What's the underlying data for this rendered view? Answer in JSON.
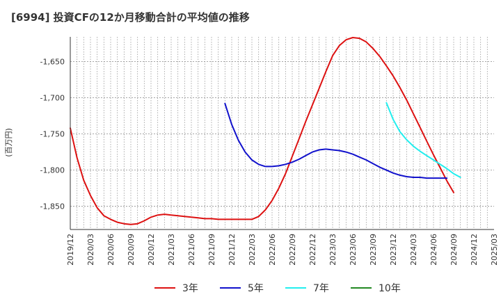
{
  "chart_data": {
    "type": "line",
    "title": "[6994]  投資CFの12か月移動合計の平均値の推移",
    "ylabel": "(百万円)",
    "xlabel": "",
    "ylim": [
      -1882,
      -1616
    ],
    "yticks": [
      -1650,
      -1700,
      -1750,
      -1800,
      -1850
    ],
    "ytick_labels": [
      "-1,650",
      "-1,700",
      "-1,750",
      "-1,800",
      "-1,850"
    ],
    "x_tick_labels": [
      "2019/12",
      "2020/03",
      "2020/06",
      "2020/09",
      "2020/12",
      "2021/03",
      "2021/06",
      "2021/09",
      "2021/12",
      "2022/03",
      "2022/06",
      "2022/09",
      "2022/12",
      "2023/03",
      "2023/06",
      "2023/09",
      "2023/12",
      "2024/03",
      "2024/06",
      "2024/09",
      "2024/12",
      "2025/03"
    ],
    "x_start": "2019/12",
    "x_end": "2025/03",
    "grid": true,
    "legend_position": "bottom",
    "series": [
      {
        "name": "3年",
        "color": "#dd1111",
        "start": "2019/12",
        "values": [
          -1742,
          -1783,
          -1814,
          -1835,
          -1852,
          -1863,
          -1868,
          -1872,
          -1874,
          -1875,
          -1874,
          -1870,
          -1865,
          -1862,
          -1861,
          -1862,
          -1863,
          -1864,
          -1865,
          -1866,
          -1867,
          -1867,
          -1868,
          -1868,
          -1868,
          -1868,
          -1868,
          -1868,
          -1864,
          -1855,
          -1842,
          -1825,
          -1805,
          -1781,
          -1757,
          -1733,
          -1710,
          -1687,
          -1664,
          -1642,
          -1628,
          -1620,
          -1617,
          -1618,
          -1623,
          -1632,
          -1643,
          -1656,
          -1670,
          -1686,
          -1703,
          -1722,
          -1741,
          -1760,
          -1779,
          -1797,
          -1815,
          -1831
        ]
      },
      {
        "name": "5年",
        "color": "#1111cc",
        "start": "2021/11",
        "values": [
          -1708,
          -1737,
          -1759,
          -1775,
          -1786,
          -1792,
          -1795,
          -1795,
          -1794,
          -1792,
          -1789,
          -1785,
          -1780,
          -1775,
          -1772,
          -1771,
          -1772,
          -1773,
          -1775,
          -1778,
          -1782,
          -1786,
          -1791,
          -1796,
          -1800,
          -1804,
          -1807,
          -1809,
          -1810,
          -1810,
          -1811,
          -1811,
          -1811,
          -1811
        ]
      },
      {
        "name": "7年",
        "color": "#22eeee",
        "start": "2023/11",
        "values": [
          -1707,
          -1730,
          -1747,
          -1758,
          -1767,
          -1774,
          -1780,
          -1786,
          -1792,
          -1798,
          -1805,
          -1810
        ]
      },
      {
        "name": "10年",
        "color": "#228822",
        "start": "2024/09",
        "values": []
      }
    ]
  }
}
